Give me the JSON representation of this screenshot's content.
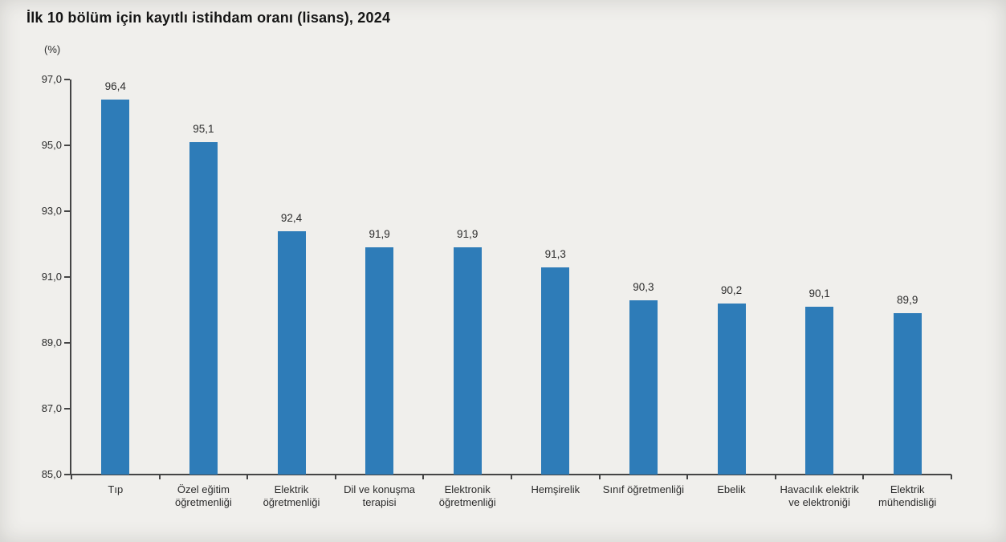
{
  "chart_data": {
    "type": "bar",
    "title": "İlk 10 bölüm için kayıtlı istihdam oranı (lisans), 2024",
    "unit_label": "(%)",
    "categories": [
      "Tıp",
      "Özel eğitim öğretmenliği",
      "Elektrik öğretmenliği",
      "Dil ve konuşma terapisi",
      "Elektronik öğretmenliği",
      "Hemşirelik",
      "Sınıf öğretmenliği",
      "Ebelik",
      "Havacılık elektrik ve elektroniği",
      "Elektrik mühendisliği"
    ],
    "values": [
      96.4,
      95.1,
      92.4,
      91.9,
      91.9,
      91.3,
      90.3,
      90.2,
      90.1,
      89.9
    ],
    "value_labels": [
      "96,4",
      "95,1",
      "92,4",
      "91,9",
      "91,9",
      "91,3",
      "90,3",
      "90,2",
      "90,1",
      "89,9"
    ],
    "ylim": [
      85,
      97
    ],
    "ytick_step": 2,
    "ytick_labels": [
      "85,0",
      "87,0",
      "89,0",
      "91,0",
      "93,0",
      "95,0",
      "97,0"
    ],
    "grid": false,
    "legend": null,
    "bar_color": "#2e7cb8",
    "xlabel": "",
    "ylabel": "(%)"
  }
}
